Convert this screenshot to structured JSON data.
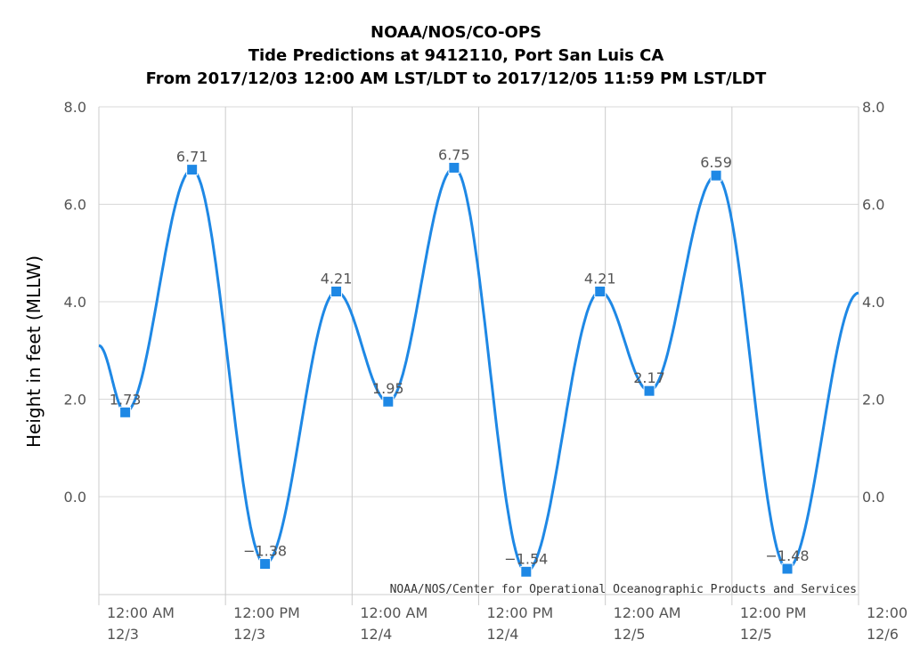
{
  "chart_data": {
    "type": "line",
    "title": "NOAA/NOS/CO-OPS",
    "subtitle_lines": [
      "Tide Predictions at 9412110, Port San Luis CA",
      "From 2017/12/03 12:00 AM LST/LDT to 2017/12/05 11:59 PM LST/LDT"
    ],
    "ylabel": "Height in feet (MLLW)",
    "credit": "NOAA/NOS/Center for Operational Oceanographic Products and Services",
    "ylim": [
      -2.0,
      8.0
    ],
    "yticks": [
      "0.0",
      "2.0",
      "4.0",
      "6.0",
      "8.0"
    ],
    "xlim": [
      "2017-12-03 00:00",
      "2017-12-06 00:00"
    ],
    "xticks": [
      {
        "time": "2017-12-03 00:00",
        "line1": "12:00 AM",
        "line2": "12/3"
      },
      {
        "time": "2017-12-03 12:00",
        "line1": "12:00 PM",
        "line2": "12/3"
      },
      {
        "time": "2017-12-04 00:00",
        "line1": "12:00 AM",
        "line2": "12/4"
      },
      {
        "time": "2017-12-04 12:00",
        "line1": "12:00 PM",
        "line2": "12/4"
      },
      {
        "time": "2017-12-05 00:00",
        "line1": "12:00 AM",
        "line2": "12/5"
      },
      {
        "time": "2017-12-05 12:00",
        "line1": "12:00 PM",
        "line2": "12/5"
      },
      {
        "time": "2017-12-06 00:00",
        "line1": "12:00",
        "line2": "12/6"
      }
    ],
    "grid": true,
    "series": [
      {
        "color": "#1e88e5",
        "marker_color": "#1e88e5",
        "start": {
          "time": "2017-12-03 00:00",
          "value": 3.1
        },
        "end": {
          "time": "2017-12-06 00:00",
          "value": 4.18
        },
        "points": [
          {
            "time": "2017-12-03 02:30",
            "value": 1.73,
            "label": "1.73"
          },
          {
            "time": "2017-12-03 08:50",
            "value": 6.71,
            "label": "6.71"
          },
          {
            "time": "2017-12-03 15:45",
            "value": -1.38,
            "label": "−1.38"
          },
          {
            "time": "2017-12-03 22:30",
            "value": 4.21,
            "label": "4.21"
          },
          {
            "time": "2017-12-04 03:25",
            "value": 1.95,
            "label": "1.95"
          },
          {
            "time": "2017-12-04 09:40",
            "value": 6.75,
            "label": "6.75"
          },
          {
            "time": "2017-12-04 16:30",
            "value": -1.54,
            "label": "−1.54"
          },
          {
            "time": "2017-12-04 23:30",
            "value": 4.21,
            "label": "4.21"
          },
          {
            "time": "2017-12-05 04:10",
            "value": 2.17,
            "label": "2.17"
          },
          {
            "time": "2017-12-05 10:30",
            "value": 6.59,
            "label": "6.59"
          },
          {
            "time": "2017-12-05 17:15",
            "value": -1.48,
            "label": "−1.48"
          }
        ]
      }
    ]
  }
}
